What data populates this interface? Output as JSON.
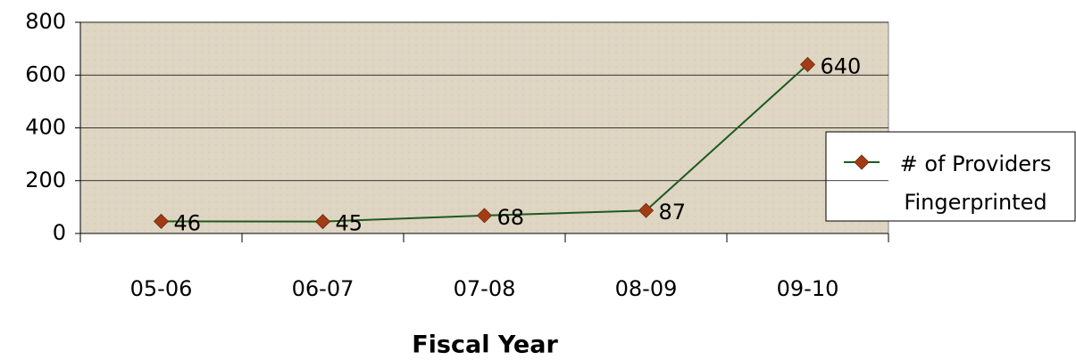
{
  "chart_data": {
    "type": "line",
    "xlabel": "Fiscal Year",
    "categories": [
      "05-06",
      "06-07",
      "07-08",
      "08-09",
      "09-10"
    ],
    "series": [
      {
        "name": "# of Providers Fingerprinted",
        "color": "#1f5a1f",
        "marker_color": "#a23c14",
        "values": [
          46,
          45,
          68,
          87,
          640
        ]
      }
    ],
    "ylim": [
      0,
      800
    ],
    "yticks": [
      0,
      200,
      400,
      600,
      800
    ],
    "grid": true,
    "legend": "right",
    "data_labels": true
  }
}
